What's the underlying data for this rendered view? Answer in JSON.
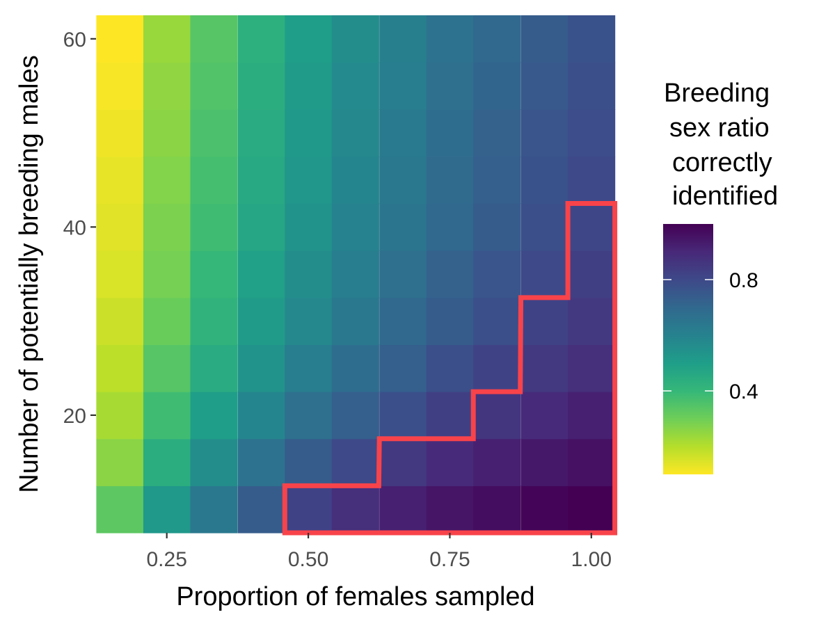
{
  "chart_data": {
    "type": "heatmap",
    "xlabel": "Proportion of females sampled",
    "ylabel": "Number of potentially breeding males",
    "x": [
      0.167,
      0.25,
      0.333,
      0.417,
      0.5,
      0.583,
      0.667,
      0.75,
      0.833,
      0.917,
      1.0
    ],
    "y": [
      10,
      15,
      20,
      25,
      30,
      35,
      40,
      45,
      50,
      55,
      60
    ],
    "xlim": [
      0.125,
      1.042
    ],
    "ylim": [
      7.5,
      62.5
    ],
    "x_ticks": [
      {
        "value": 0.25,
        "label": "0.25"
      },
      {
        "value": 0.5,
        "label": "0.50"
      },
      {
        "value": 0.75,
        "label": "0.75"
      },
      {
        "value": 1.0,
        "label": "1.00"
      }
    ],
    "y_ticks": [
      {
        "value": 20,
        "label": "20"
      },
      {
        "value": 40,
        "label": "40"
      },
      {
        "value": 60,
        "label": "60"
      }
    ],
    "values": [
      [
        0.33,
        0.52,
        0.64,
        0.74,
        0.82,
        0.88,
        0.92,
        0.95,
        0.97,
        0.99,
        1.0
      ],
      [
        0.26,
        0.44,
        0.56,
        0.66,
        0.74,
        0.8,
        0.85,
        0.89,
        0.92,
        0.94,
        0.96
      ],
      [
        0.22,
        0.38,
        0.5,
        0.59,
        0.67,
        0.73,
        0.78,
        0.83,
        0.86,
        0.89,
        0.92
      ],
      [
        0.19,
        0.34,
        0.45,
        0.54,
        0.62,
        0.68,
        0.73,
        0.78,
        0.82,
        0.85,
        0.88
      ],
      [
        0.17,
        0.31,
        0.42,
        0.51,
        0.58,
        0.64,
        0.7,
        0.74,
        0.78,
        0.82,
        0.85
      ],
      [
        0.15,
        0.29,
        0.4,
        0.49,
        0.56,
        0.62,
        0.67,
        0.72,
        0.76,
        0.8,
        0.83
      ],
      [
        0.14,
        0.28,
        0.38,
        0.47,
        0.54,
        0.6,
        0.65,
        0.7,
        0.74,
        0.78,
        0.81
      ],
      [
        0.13,
        0.27,
        0.37,
        0.46,
        0.53,
        0.59,
        0.64,
        0.69,
        0.73,
        0.77,
        0.8
      ],
      [
        0.12,
        0.26,
        0.36,
        0.45,
        0.52,
        0.58,
        0.63,
        0.68,
        0.72,
        0.76,
        0.79
      ],
      [
        0.11,
        0.25,
        0.35,
        0.44,
        0.51,
        0.57,
        0.62,
        0.67,
        0.71,
        0.75,
        0.78
      ],
      [
        0.1,
        0.24,
        0.34,
        0.43,
        0.5,
        0.56,
        0.61,
        0.66,
        0.7,
        0.74,
        0.77
      ]
    ],
    "highlight": {
      "color": "#f8434a",
      "cells": [
        {
          "x": 0.5,
          "y_max": 10
        },
        {
          "x": 0.583,
          "y_max": 10
        },
        {
          "x": 0.667,
          "y_max": 15
        },
        {
          "x": 0.75,
          "y_max": 15
        },
        {
          "x": 0.833,
          "y_max": 20
        },
        {
          "x": 0.917,
          "y_max": 30
        },
        {
          "x": 1.0,
          "y_max": 40
        }
      ]
    },
    "legend": {
      "title_lines": [
        "Breeding",
        "sex ratio",
        "correctly",
        "identified"
      ],
      "placement": "right",
      "ticks": [
        {
          "value": 0.4,
          "label": "0.4"
        },
        {
          "value": 0.8,
          "label": "0.8"
        }
      ],
      "range": [
        0.1,
        1.0
      ],
      "palette": "viridis (reversed)",
      "colors": [
        "#440154",
        "#482878",
        "#3e4989",
        "#31688e",
        "#26828e",
        "#1f9e89",
        "#35b779",
        "#6ece58",
        "#b5de2b",
        "#fde725"
      ]
    },
    "panel_background": "#ebebeb",
    "grid": true
  }
}
